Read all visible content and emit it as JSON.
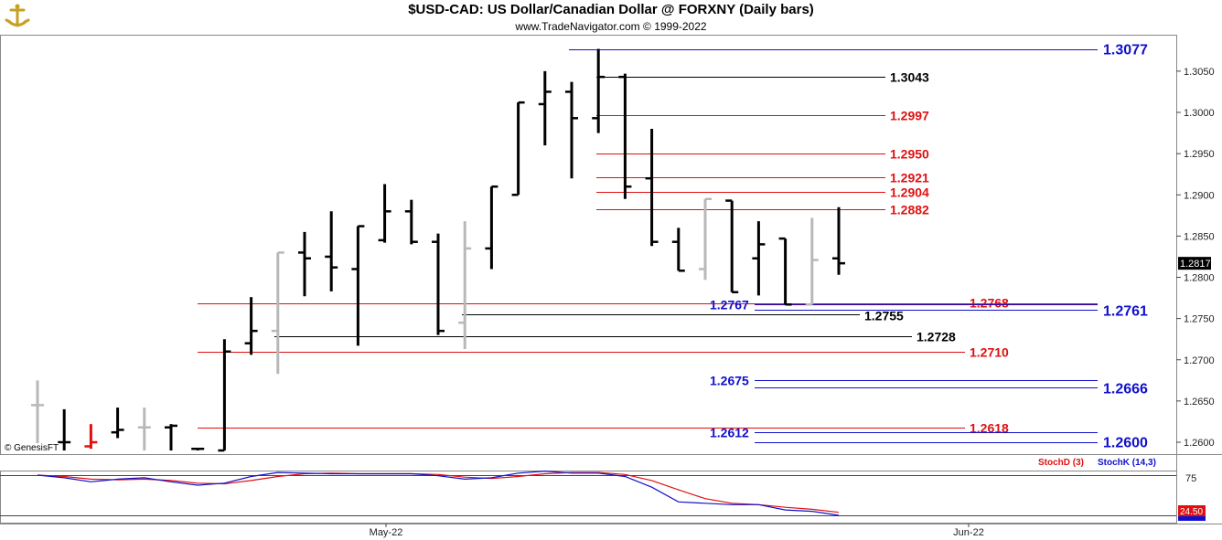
{
  "header": {
    "title": "$USD-CAD:  US Dollar/Canadian Dollar @ FORXNY  (Daily bars)",
    "subtitle": "www.TradeNavigator.com © 1999-2022"
  },
  "watermark": "© GenesisFT",
  "colors": {
    "up_bar": "#000000",
    "neutral_bar": "#b8b8b8",
    "red_bar": "#e01010",
    "level_red": "#e01010",
    "level_blue": "#1010cc",
    "level_black": "#000000",
    "stoch_d": "#e01010",
    "stoch_k": "#1010cc"
  },
  "price_axis": {
    "ticks": [
      "1.3050",
      "1.3000",
      "1.2950",
      "1.2900",
      "1.2850",
      "1.2800",
      "1.2750",
      "1.2700",
      "1.2650",
      "1.2600"
    ],
    "current": "1.2817"
  },
  "x_axis": {
    "labels": [
      "May-22",
      "Jun-22"
    ]
  },
  "oscillator": {
    "legend_d": "StochD (3)",
    "legend_k": "StochK (14,3)",
    "tick": "75",
    "current": "24.50"
  },
  "chart_data": {
    "type": "bar",
    "ylim": [
      1.259,
      1.3095
    ],
    "bars": [
      {
        "o": 1.2645,
        "h": 1.2675,
        "l": 1.259,
        "c": 1.2645,
        "col": "gray"
      },
      {
        "o": 1.26,
        "h": 1.264,
        "l": 1.259,
        "c": 1.26,
        "col": "black"
      },
      {
        "o": 1.2595,
        "h": 1.2622,
        "l": 1.2592,
        "c": 1.26,
        "col": "red"
      },
      {
        "o": 1.2612,
        "h": 1.2642,
        "l": 1.2605,
        "c": 1.2615,
        "col": "black"
      },
      {
        "o": 1.2618,
        "h": 1.2642,
        "l": 1.259,
        "c": 1.2618,
        "col": "gray"
      },
      {
        "o": 1.2618,
        "h": 1.2622,
        "l": 1.259,
        "c": 1.262,
        "col": "black"
      },
      {
        "o": 1.2592,
        "h": 1.2592,
        "l": 1.259,
        "c": 1.2592,
        "col": "black"
      },
      {
        "o": 1.259,
        "h": 1.2725,
        "l": 1.259,
        "c": 1.271,
        "col": "black"
      },
      {
        "o": 1.272,
        "h": 1.2776,
        "l": 1.2706,
        "c": 1.2735,
        "col": "black"
      },
      {
        "o": 1.2735,
        "h": 1.283,
        "l": 1.2683,
        "c": 1.283,
        "col": "gray"
      },
      {
        "o": 1.283,
        "h": 1.2855,
        "l": 1.2777,
        "c": 1.2823,
        "col": "black"
      },
      {
        "o": 1.2825,
        "h": 1.288,
        "l": 1.2783,
        "c": 1.2812,
        "col": "black"
      },
      {
        "o": 1.281,
        "h": 1.2862,
        "l": 1.2717,
        "c": 1.2862,
        "col": "black"
      },
      {
        "o": 1.2845,
        "h": 1.2913,
        "l": 1.2842,
        "c": 1.288,
        "col": "black"
      },
      {
        "o": 1.288,
        "h": 1.2894,
        "l": 1.284,
        "c": 1.2843,
        "col": "black"
      },
      {
        "o": 1.2843,
        "h": 1.2853,
        "l": 1.273,
        "c": 1.2735,
        "col": "black"
      },
      {
        "o": 1.2745,
        "h": 1.2868,
        "l": 1.2713,
        "c": 1.2835,
        "col": "gray"
      },
      {
        "o": 1.2835,
        "h": 1.291,
        "l": 1.281,
        "c": 1.291,
        "col": "black"
      },
      {
        "o": 1.29,
        "h": 1.3012,
        "l": 1.29,
        "c": 1.3012,
        "col": "black"
      },
      {
        "o": 1.301,
        "h": 1.305,
        "l": 1.296,
        "c": 1.3025,
        "col": "black"
      },
      {
        "o": 1.3025,
        "h": 1.3037,
        "l": 1.292,
        "c": 1.2993,
        "col": "black"
      },
      {
        "o": 1.2993,
        "h": 1.3077,
        "l": 1.2975,
        "c": 1.3043,
        "col": "black"
      },
      {
        "o": 1.3043,
        "h": 1.3047,
        "l": 1.2895,
        "c": 1.291,
        "col": "black"
      },
      {
        "o": 1.292,
        "h": 1.298,
        "l": 1.2838,
        "c": 1.2843,
        "col": "black"
      },
      {
        "o": 1.2843,
        "h": 1.286,
        "l": 1.2808,
        "c": 1.2808,
        "col": "black"
      },
      {
        "o": 1.281,
        "h": 1.2895,
        "l": 1.2797,
        "c": 1.2895,
        "col": "gray"
      },
      {
        "o": 1.2893,
        "h": 1.2893,
        "l": 1.2782,
        "c": 1.2782,
        "col": "black"
      },
      {
        "o": 1.2823,
        "h": 1.2868,
        "l": 1.2778,
        "c": 1.284,
        "col": "black"
      },
      {
        "o": 1.2847,
        "h": 1.2847,
        "l": 1.2767,
        "c": 1.2767,
        "col": "black"
      },
      {
        "o": 1.2767,
        "h": 1.2872,
        "l": 1.2767,
        "c": 1.2821,
        "col": "gray"
      },
      {
        "o": 1.2823,
        "h": 1.2885,
        "l": 1.2803,
        "c": 1.2817,
        "col": "black"
      }
    ],
    "levels": [
      {
        "value": 1.3077,
        "label": "1.3077",
        "color": "blue"
      },
      {
        "value": 1.3043,
        "label": "1.3043",
        "color": "black"
      },
      {
        "value": 1.2997,
        "label": "1.2997",
        "color": "red"
      },
      {
        "value": 1.295,
        "label": "1.2950",
        "color": "red"
      },
      {
        "value": 1.2921,
        "label": "1.2921",
        "color": "red"
      },
      {
        "value": 1.2904,
        "label": "1.2904",
        "color": "red"
      },
      {
        "value": 1.2882,
        "label": "1.2882",
        "color": "red"
      },
      {
        "value": 1.2768,
        "label": "1.2768",
        "color": "red"
      },
      {
        "value": 1.2767,
        "label": "1.2767",
        "color": "blue"
      },
      {
        "value": 1.2761,
        "label": "1.2761",
        "color": "blue"
      },
      {
        "value": 1.2755,
        "label": "1.2755",
        "color": "black"
      },
      {
        "value": 1.2728,
        "label": "1.2728",
        "color": "black"
      },
      {
        "value": 1.271,
        "label": "1.2710",
        "color": "red"
      },
      {
        "value": 1.2675,
        "label": "1.2675",
        "color": "blue"
      },
      {
        "value": 1.2666,
        "label": "1.2666",
        "color": "blue"
      },
      {
        "value": 1.2618,
        "label": "1.2618",
        "color": "red"
      },
      {
        "value": 1.2612,
        "label": "1.2612",
        "color": "blue"
      },
      {
        "value": 1.26,
        "label": "1.2600",
        "color": "blue"
      }
    ],
    "stoch_k": [
      80,
      76,
      70,
      74,
      76,
      70,
      65,
      68,
      78,
      84,
      83,
      82,
      82,
      82,
      82,
      79,
      74,
      76,
      83,
      86,
      83,
      83,
      78,
      62,
      40,
      38,
      36,
      36,
      28,
      26,
      20
    ],
    "stoch_d": [
      80,
      78,
      74,
      73,
      74,
      72,
      68,
      67,
      72,
      78,
      82,
      83,
      82,
      82,
      82,
      81,
      77,
      75,
      78,
      82,
      84,
      84,
      81,
      72,
      58,
      45,
      38,
      36,
      32,
      29,
      24.5
    ]
  }
}
